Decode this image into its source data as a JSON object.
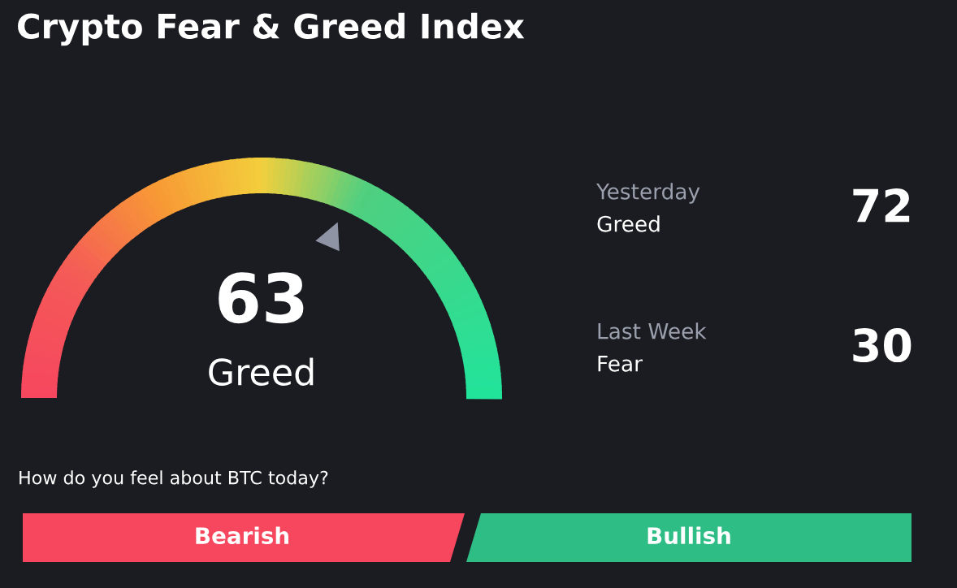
{
  "chart_data": {
    "type": "other",
    "title": "Crypto Fear & Greed Index",
    "categories": [
      null,
      "Yesterday",
      "Last Week"
    ],
    "values": [
      63,
      72,
      30
    ],
    "data_labels": true,
    "annotations": [
      "Greed",
      "Greed",
      "Fear",
      "How do you feel about BTC today?",
      "Bearish",
      "Bullish"
    ]
  }
}
